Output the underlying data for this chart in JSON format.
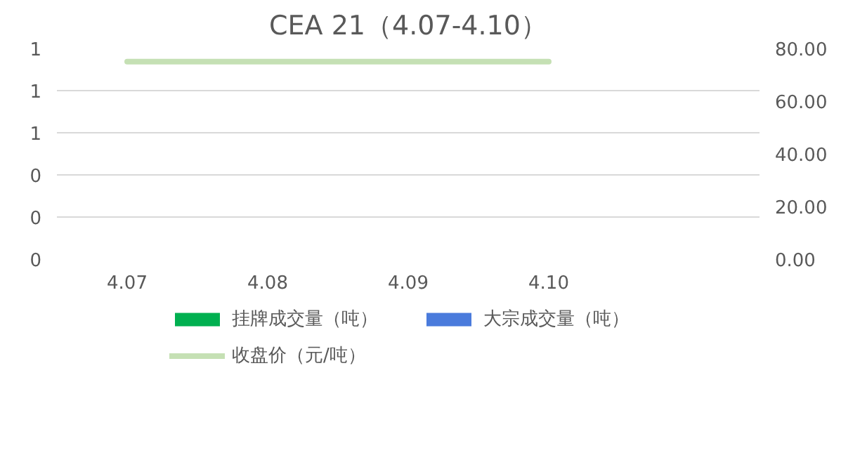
{
  "chart_data": {
    "type": "bar",
    "title": "CEA 21（4.07-4.10）",
    "categories": [
      "4.07",
      "4.08",
      "4.09",
      "4.10",
      null
    ],
    "series": [
      {
        "name": "挂牌成交量（吨）",
        "color": "#00b050",
        "values": [
          0,
          0,
          0,
          0,
          null
        ]
      },
      {
        "name": "大宗成交量（吨）",
        "color": "#4a7bdc",
        "values": [
          0,
          0,
          0,
          0,
          null
        ]
      },
      {
        "name": "收盘价（元/吨）",
        "color": "#c5e0b4",
        "type": "line",
        "axis": "y2",
        "values": [
          75,
          75,
          75,
          75,
          null
        ]
      }
    ],
    "ylim": [
      0,
      1
    ],
    "yticks": [
      {
        "value": 0,
        "label": "0"
      },
      {
        "value": 0.2,
        "label": "0"
      },
      {
        "value": 0.4,
        "label": "0"
      },
      {
        "value": 0.6,
        "label": "1"
      },
      {
        "value": 0.8,
        "label": "1"
      },
      {
        "value": 1,
        "label": "1"
      }
    ],
    "y2lim": [
      0,
      80
    ],
    "y2ticks": [
      {
        "value": 0,
        "label": "0.00"
      },
      {
        "value": 20,
        "label": "20.00"
      },
      {
        "value": 40,
        "label": "40.00"
      },
      {
        "value": 60,
        "label": "60.00"
      },
      {
        "value": 80,
        "label": "80.00"
      }
    ],
    "grid": "y",
    "legend": "bottom"
  }
}
